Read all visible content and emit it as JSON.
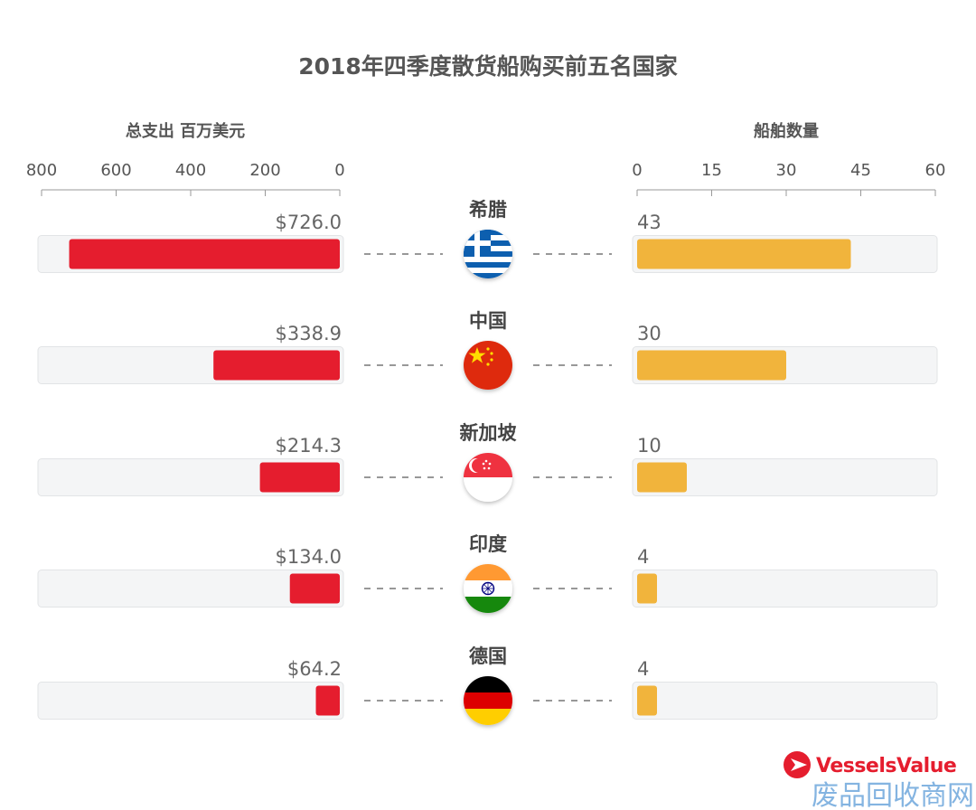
{
  "chart_data": {
    "type": "bar",
    "title": "2018年四季度散货船购买前五名国家",
    "categories": [
      "希腊",
      "中国",
      "新加坡",
      "印度",
      "德国"
    ],
    "left_axis": {
      "title": "总支出 百万美元",
      "ticks": [
        800,
        600,
        400,
        200,
        0
      ],
      "range": [
        0,
        800
      ],
      "direction": "reversed"
    },
    "right_axis": {
      "title": "船舶数量",
      "ticks": [
        0,
        15,
        30,
        45,
        60
      ],
      "range": [
        0,
        60
      ]
    },
    "series": [
      {
        "values": [
          726.0,
          338.9,
          214.3,
          134.0,
          64.2
        ],
        "labels": [
          "$726.0",
          "$338.9",
          "$214.3",
          "$134.0",
          "$64.2"
        ],
        "color": "#e51d2e"
      },
      {
        "values": [
          43,
          30,
          10,
          4,
          4
        ],
        "labels": [
          "43",
          "30",
          "10",
          "4",
          "4"
        ],
        "color": "#f1b43c"
      }
    ],
    "flags": [
      "greece-flag",
      "china-flag",
      "singapore-flag",
      "india-flag",
      "germany-flag"
    ],
    "grid": false
  },
  "brand": {
    "name": "VesselsValue",
    "logo_icon": "vesselsvalue-logo-icon",
    "color": "#e51d2e"
  },
  "watermark": {
    "text": "废品回收商网"
  },
  "colors": {
    "track": "#f4f5f6",
    "track_border": "#e2e4e6",
    "dash": "#777777",
    "axis": "#999999"
  }
}
